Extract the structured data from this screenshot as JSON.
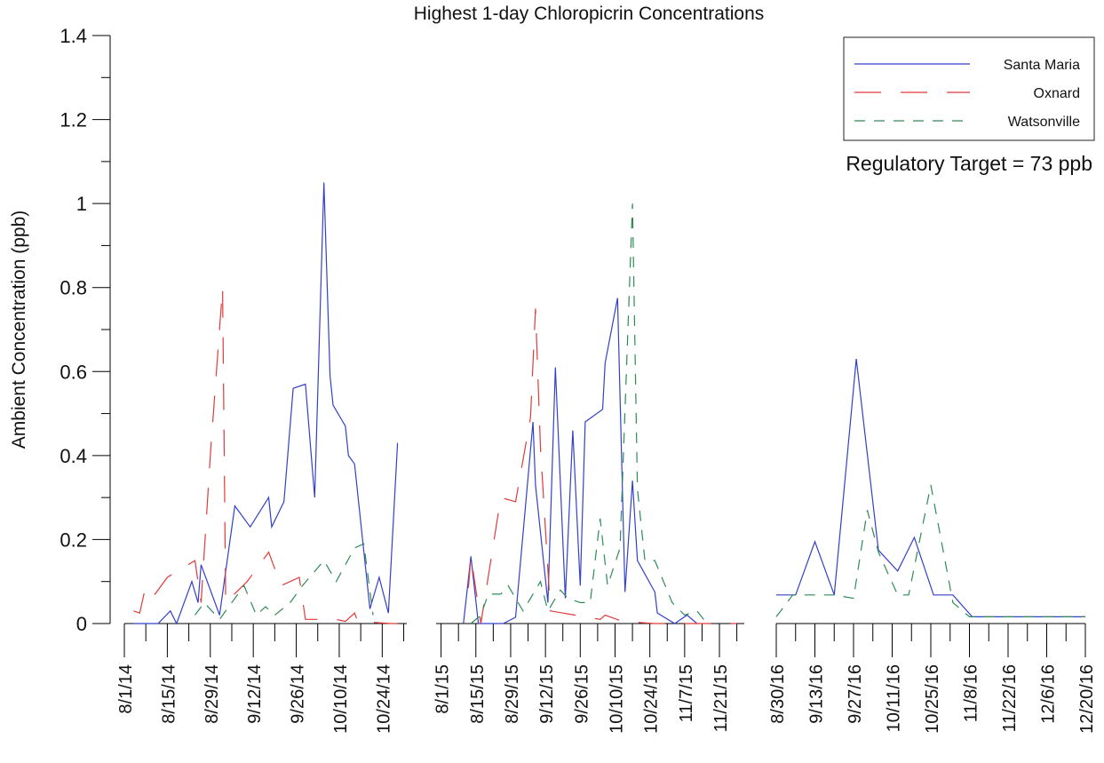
{
  "chart_data": {
    "type": "line",
    "title": "Highest 1-day Chloropicrin Concentrations",
    "y_label": "Ambient Concentration (ppb)",
    "annotation": "Regulatory Target = 73 ppb",
    "ylim": [
      0,
      1.4
    ],
    "yticks": [
      0,
      0.2,
      0.4,
      0.6,
      0.8,
      1,
      1.2,
      1.4
    ],
    "yminorticks": [
      0.1,
      0.3,
      0.5,
      0.7,
      0.9,
      1.1,
      1.3
    ],
    "legend": "upper right",
    "series": [
      {
        "name": "Santa Maria",
        "color": "#3340c8",
        "dash": "none"
      },
      {
        "name": "Oxnard",
        "color": "#e03a3a",
        "dash": "30 22"
      },
      {
        "name": "Watsonville",
        "color": "#2e8b57",
        "dash": "12 10"
      }
    ],
    "panels": [
      {
        "xlim": [
          "8/1/14",
          "11/1/14"
        ],
        "xticks": [
          "8/1/14",
          "8/15/14",
          "8/29/14",
          "9/12/14",
          "9/26/14",
          "10/10/14",
          "10/24/14"
        ],
        "xminorticks": [
          "8/8/14",
          "8/22/14",
          "9/5/14",
          "9/19/14",
          "10/3/14",
          "10/17/14",
          "10/31/14"
        ],
        "series": [
          {
            "x": [
              "8/4/14",
              "8/12/14",
              "8/16/14",
              "8/18/14",
              "8/23/14",
              "8/25/14",
              "8/26/14",
              "9/1/14",
              "9/6/14",
              "9/11/14",
              "9/17/14",
              "9/18/14",
              "9/22/14",
              "9/25/14",
              "9/29/14",
              "10/2/14",
              "10/5/14",
              "10/7/14",
              "10/8/14",
              "10/12/14",
              "10/13/14",
              "10/15/14",
              "10/20/14",
              "10/23/14",
              "10/26/14",
              "10/29/14"
            ],
            "values": [
              0,
              0,
              0.03,
              0,
              0.1,
              0.05,
              0.14,
              0.02,
              0.28,
              0.23,
              0.3,
              0.23,
              0.29,
              0.56,
              0.57,
              0.3,
              1.05,
              0.59,
              0.52,
              0.47,
              0.4,
              0.38,
              0.035,
              0.11,
              0.025,
              0.43
            ]
          },
          {
            "x": [
              "8/4/14",
              "8/6/14",
              "8/8/14",
              "8/11/14",
              "8/15/14",
              "8/24/14",
              "8/26/14",
              "8/29/14",
              "9/2/14",
              "9/3/14",
              "9/10/14",
              "9/17/14",
              "9/21/14",
              "9/27/14",
              "9/29/14",
              "10/9/14",
              "10/12/14",
              "10/15/14",
              "10/16/14",
              "10/27/14",
              "10/29/14"
            ],
            "values": [
              0.03,
              0.025,
              0.09,
              0.07,
              0.11,
              0.15,
              0.05,
              0.4,
              0.8,
              0.05,
              0.1,
              0.17,
              0.09,
              0.11,
              0.01,
              0.01,
              0.005,
              0.025,
              0.005,
              0,
              0
            ]
          },
          {
            "x": [
              "8/24/14",
              "8/27/14",
              "9/1/14",
              "9/9/14",
              "9/13/14",
              "9/16/14",
              "9/19/14",
              "9/24/14",
              "9/28/14",
              "10/5/14",
              "10/9/14",
              "10/15/14",
              "10/18/14",
              "10/21/14"
            ],
            "values": [
              0.02,
              0.05,
              0.01,
              0.09,
              0.02,
              0.04,
              0.02,
              0.05,
              0.09,
              0.15,
              0.1,
              0.18,
              0.19,
              0.02
            ]
          }
        ]
      },
      {
        "xlim": [
          "7/30/15",
          "12/1/15"
        ],
        "xticks": [
          "8/1/15",
          "8/15/15",
          "8/29/15",
          "9/12/15",
          "9/26/15",
          "10/10/15",
          "10/24/15",
          "11/7/15",
          "11/21/15"
        ],
        "xminorticks": [
          "8/8/15",
          "8/22/15",
          "9/5/15",
          "9/19/15",
          "10/3/15",
          "10/17/15",
          "10/31/15",
          "11/14/15",
          "11/28/15"
        ],
        "series": [
          {
            "x": [
              "8/10/15",
              "8/13/15",
              "8/16/15",
              "8/26/15",
              "8/31/15",
              "9/7/15",
              "9/8/15",
              "9/13/15",
              "9/16/15",
              "9/20/15",
              "9/23/15",
              "9/26/15",
              "9/28/15",
              "10/5/15",
              "10/6/15",
              "10/11/15",
              "10/14/15",
              "10/17/15",
              "10/19/15",
              "10/26/15",
              "10/27/15",
              "11/3/15",
              "11/8/15",
              "11/12/15"
            ],
            "values": [
              0,
              0.16,
              0,
              0,
              0.015,
              0.48,
              0.33,
              0.05,
              0.61,
              0.06,
              0.46,
              0.09,
              0.48,
              0.51,
              0.62,
              0.775,
              0.075,
              0.34,
              0.15,
              0.075,
              0.025,
              0,
              0.02,
              0
            ]
          },
          {
            "x": [
              "8/12/15",
              "8/13/15",
              "8/17/15",
              "8/25/15",
              "8/31/15",
              "9/6/15",
              "9/8/15",
              "9/10/15",
              "9/14/15",
              "10/4/15",
              "10/6/15",
              "10/13/15",
              "10/26/15",
              "11/9/15",
              "11/21/15",
              "11/28/15"
            ],
            "values": [
              0.085,
              0.16,
              0,
              0.3,
              0.29,
              0.49,
              0.75,
              0.42,
              0.03,
              0.01,
              0.02,
              0.005,
              0,
              0,
              0,
              0
            ]
          },
          {
            "x": [
              "8/13/15",
              "8/17/15",
              "8/20/15",
              "8/25/15",
              "8/28/15",
              "9/3/15",
              "9/10/15",
              "9/13/15",
              "9/18/15",
              "9/21/15",
              "9/26/15",
              "9/30/15",
              "10/4/15",
              "10/7/15",
              "10/12/15",
              "10/17/15",
              "10/19/15",
              "10/22/15",
              "10/26/15",
              "11/2/15",
              "11/7/15",
              "11/12/15",
              "11/16/15"
            ],
            "values": [
              0,
              0.02,
              0.07,
              0.07,
              0.09,
              0.03,
              0.1,
              0.03,
              0.08,
              0.06,
              0.05,
              0.05,
              0.25,
              0.09,
              0.18,
              1,
              0.32,
              0.15,
              0.15,
              0.05,
              0.02,
              0.03,
              0
            ]
          }
        ]
      },
      {
        "xlim": [
          "8/30/16",
          "12/20/16"
        ],
        "xticks": [
          "8/30/16",
          "9/13/16",
          "9/27/16",
          "10/11/16",
          "10/25/16",
          "11/8/16",
          "11/22/16",
          "12/6/16",
          "12/20/16"
        ],
        "xminorticks": [
          "9/6/16",
          "9/20/16",
          "10/4/16",
          "10/18/16",
          "11/1/16",
          "11/15/16",
          "11/29/16",
          "12/13/16"
        ],
        "series": [
          {
            "x": [
              "8/30/16",
              "9/6/16",
              "9/13/16",
              "9/20/16",
              "9/28/16",
              "10/6/16",
              "10/13/16",
              "10/19/16",
              "10/26/16",
              "11/2/16",
              "11/9/16",
              "12/20/16"
            ],
            "values": [
              0.068,
              0.068,
              0.195,
              0.068,
              0.63,
              0.175,
              0.125,
              0.205,
              0.068,
              0.068,
              0.016,
              0.016
            ]
          },
          {
            "x": [],
            "values": []
          },
          {
            "x": [
              "8/30/16",
              "9/5/16",
              "9/13/16",
              "9/20/16",
              "9/27/16",
              "10/2/16",
              "10/6/16",
              "10/13/16",
              "10/17/16",
              "10/25/16",
              "11/2/16",
              "11/8/16",
              "12/20/16"
            ],
            "values": [
              0.016,
              0.068,
              0.068,
              0.068,
              0.06,
              0.27,
              0.17,
              0.068,
              0.068,
              0.33,
              0.05,
              0.016,
              0.016
            ]
          }
        ]
      }
    ]
  }
}
